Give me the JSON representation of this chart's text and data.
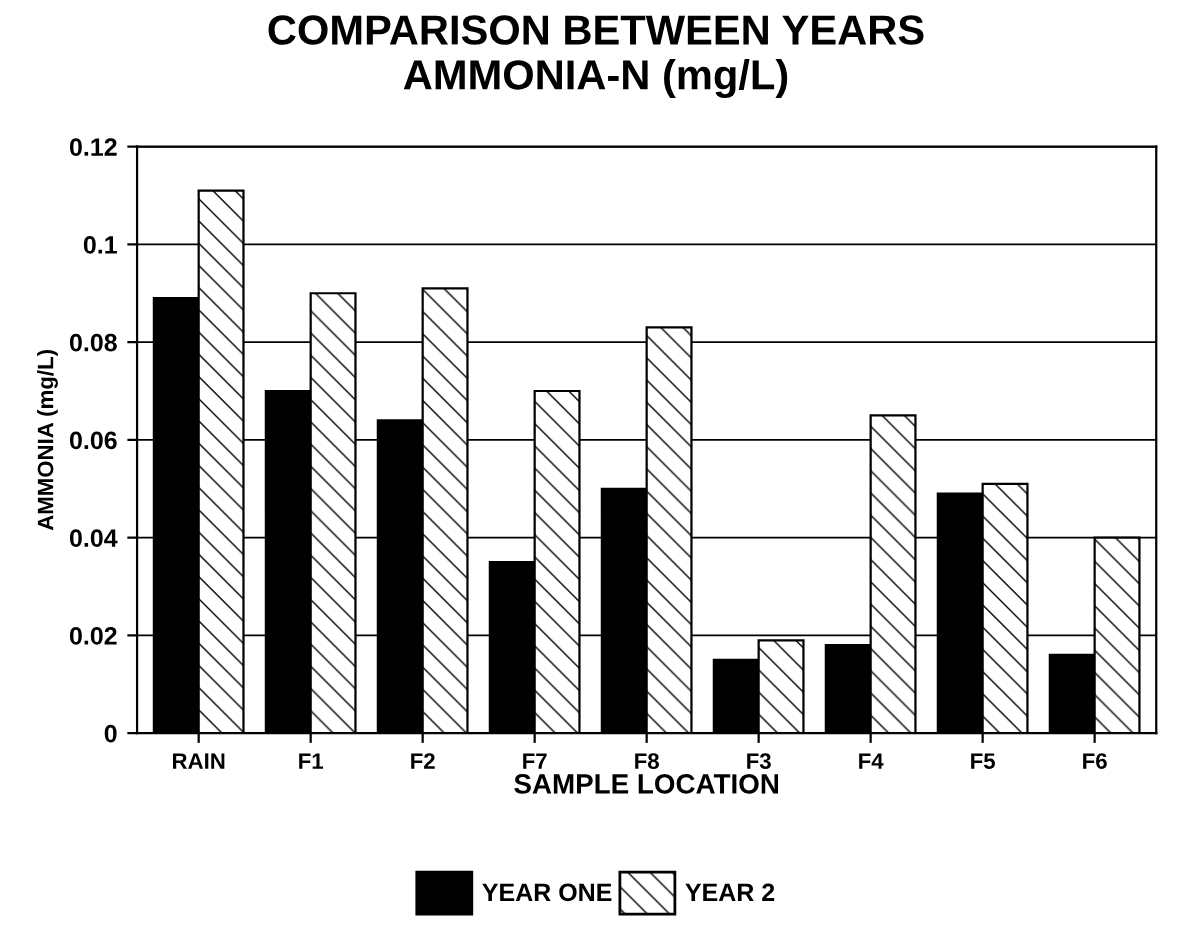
{
  "chart_data": {
    "type": "bar",
    "title": "COMPARISON BETWEEN YEARS\nAMMONIA-N (mg/L)",
    "xlabel": "SAMPLE LOCATION",
    "ylabel": "AMMONIA (mg/L)",
    "categories": [
      "RAIN",
      "F1",
      "F2",
      "F7",
      "F8",
      "F3",
      "F4",
      "F5",
      "F6"
    ],
    "series": [
      {
        "name": "YEAR ONE",
        "color": "#000000",
        "values": [
          0.089,
          0.07,
          0.064,
          0.035,
          0.05,
          0.015,
          0.018,
          0.049,
          0.016
        ]
      },
      {
        "name": "YEAR 2",
        "color": "#000000",
        "values": [
          0.111,
          0.09,
          0.091,
          0.07,
          0.083,
          0.019,
          0.065,
          0.051,
          0.04
        ]
      }
    ],
    "ylim": [
      0,
      0.12
    ],
    "yticks": [
      0,
      0.02,
      0.04,
      0.06,
      0.08,
      0.1,
      0.12
    ],
    "grid": "y",
    "legend": "bottom"
  }
}
